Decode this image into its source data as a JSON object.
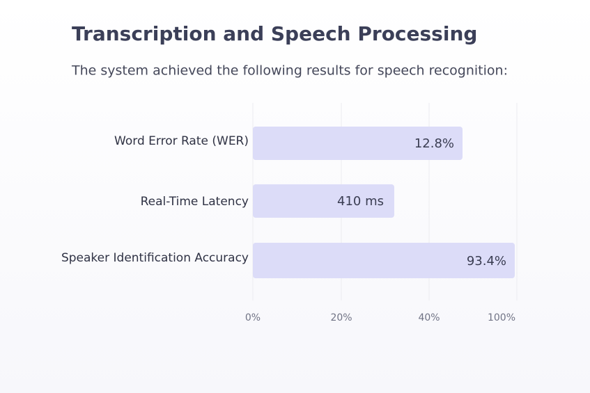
{
  "title": "Transcription and Speech Processing",
  "subtitle": "The system achieved the following results for speech recognition:",
  "rows": [
    {
      "label": "Word Error Rate (WER)",
      "value": "12.8%"
    },
    {
      "label": "Real-Time Latency",
      "value": "410 ms"
    },
    {
      "label": "Speaker Identification Accuracy",
      "value": "93.4%"
    }
  ],
  "axis_labels": [
    "0%",
    "20%",
    "40%",
    "100%"
  ]
}
